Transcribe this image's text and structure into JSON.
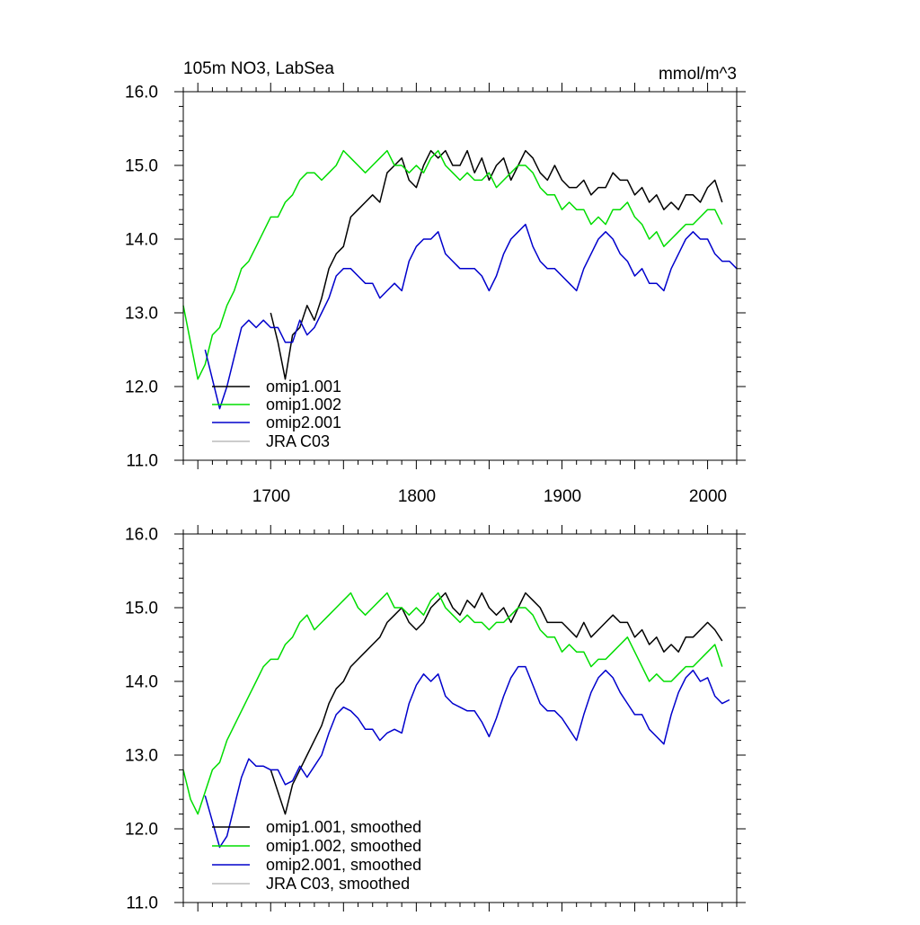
{
  "chart_data": [
    {
      "type": "line",
      "title": "105m NO3, LabSea",
      "units": "mmol/m^3",
      "xlim": [
        1640,
        2020
      ],
      "ylim": [
        11.0,
        16.0
      ],
      "xticks": [
        1700,
        1800,
        1900,
        2000
      ],
      "xtick_labels": [
        "1700",
        "1800",
        "1900",
        "2000"
      ],
      "yticks": [
        11.0,
        12.0,
        13.0,
        14.0,
        15.0,
        16.0
      ],
      "ytick_labels": [
        "11.0",
        "12.0",
        "13.0",
        "14.0",
        "15.0",
        "16.0"
      ],
      "legend_position": "bottom-left",
      "series": [
        {
          "name": "omip1.001",
          "color": "#000000",
          "x": [
            1700,
            1705,
            1710,
            1715,
            1720,
            1725,
            1730,
            1735,
            1740,
            1745,
            1750,
            1755,
            1760,
            1765,
            1770,
            1775,
            1780,
            1785,
            1790,
            1795,
            1800,
            1805,
            1810,
            1815,
            1820,
            1825,
            1830,
            1835,
            1840,
            1845,
            1850,
            1855,
            1860,
            1865,
            1870,
            1875,
            1880,
            1885,
            1890,
            1895,
            1900,
            1905,
            1910,
            1915,
            1920,
            1925,
            1930,
            1935,
            1940,
            1945,
            1950,
            1955,
            1960,
            1965,
            1970,
            1975,
            1980,
            1985,
            1990,
            1995,
            2000,
            2005,
            2010
          ],
          "values": [
            13.0,
            12.6,
            12.1,
            12.7,
            12.8,
            13.1,
            12.9,
            13.2,
            13.6,
            13.8,
            13.9,
            14.3,
            14.4,
            14.5,
            14.6,
            14.5,
            14.9,
            15.0,
            15.1,
            14.8,
            14.7,
            15.0,
            15.2,
            15.1,
            15.2,
            15.0,
            15.0,
            15.2,
            14.9,
            15.1,
            14.8,
            15.0,
            15.1,
            14.8,
            15.0,
            15.2,
            15.1,
            14.9,
            14.8,
            15.0,
            14.8,
            14.7,
            14.7,
            14.8,
            14.6,
            14.7,
            14.7,
            14.9,
            14.8,
            14.8,
            14.6,
            14.7,
            14.5,
            14.6,
            14.4,
            14.5,
            14.4,
            14.6,
            14.6,
            14.5,
            14.7,
            14.8,
            14.5
          ]
        },
        {
          "name": "omip1.002",
          "color": "#00dd00",
          "x": [
            1640,
            1645,
            1650,
            1655,
            1660,
            1665,
            1670,
            1675,
            1680,
            1685,
            1690,
            1695,
            1700,
            1705,
            1710,
            1715,
            1720,
            1725,
            1730,
            1735,
            1740,
            1745,
            1750,
            1755,
            1760,
            1765,
            1770,
            1775,
            1780,
            1785,
            1790,
            1795,
            1800,
            1805,
            1810,
            1815,
            1820,
            1825,
            1830,
            1835,
            1840,
            1845,
            1850,
            1855,
            1860,
            1865,
            1870,
            1875,
            1880,
            1885,
            1890,
            1895,
            1900,
            1905,
            1910,
            1915,
            1920,
            1925,
            1930,
            1935,
            1940,
            1945,
            1950,
            1955,
            1960,
            1965,
            1970,
            1975,
            1980,
            1985,
            1990,
            1995,
            2000,
            2005,
            2010
          ],
          "values": [
            13.1,
            12.6,
            12.1,
            12.3,
            12.7,
            12.8,
            13.1,
            13.3,
            13.6,
            13.7,
            13.9,
            14.1,
            14.3,
            14.3,
            14.5,
            14.6,
            14.8,
            14.9,
            14.9,
            14.8,
            14.9,
            15.0,
            15.2,
            15.1,
            15.0,
            14.9,
            15.0,
            15.1,
            15.2,
            15.0,
            15.0,
            14.9,
            15.0,
            14.9,
            15.1,
            15.2,
            15.0,
            14.9,
            14.8,
            14.9,
            14.8,
            14.8,
            14.9,
            14.7,
            14.8,
            14.9,
            15.0,
            15.0,
            14.9,
            14.7,
            14.6,
            14.6,
            14.4,
            14.5,
            14.4,
            14.4,
            14.2,
            14.3,
            14.2,
            14.4,
            14.4,
            14.5,
            14.3,
            14.2,
            14.0,
            14.1,
            13.9,
            14.0,
            14.1,
            14.2,
            14.2,
            14.3,
            14.4,
            14.4,
            14.2
          ]
        },
        {
          "name": "omip2.001",
          "color": "#0000cc",
          "x": [
            1655,
            1660,
            1665,
            1670,
            1675,
            1680,
            1685,
            1690,
            1695,
            1700,
            1705,
            1710,
            1715,
            1720,
            1725,
            1730,
            1735,
            1740,
            1745,
            1750,
            1755,
            1760,
            1765,
            1770,
            1775,
            1780,
            1785,
            1790,
            1795,
            1800,
            1805,
            1810,
            1815,
            1820,
            1825,
            1830,
            1835,
            1840,
            1845,
            1850,
            1855,
            1860,
            1865,
            1870,
            1875,
            1880,
            1885,
            1890,
            1895,
            1900,
            1905,
            1910,
            1915,
            1920,
            1925,
            1930,
            1935,
            1940,
            1945,
            1950,
            1955,
            1960,
            1965,
            1970,
            1975,
            1980,
            1985,
            1990,
            1995,
            2000,
            2005,
            2010,
            2015,
            2020
          ],
          "values": [
            12.5,
            12.1,
            11.7,
            12.0,
            12.4,
            12.8,
            12.9,
            12.8,
            12.9,
            12.8,
            12.8,
            12.6,
            12.6,
            12.9,
            12.7,
            12.8,
            13.0,
            13.2,
            13.5,
            13.6,
            13.6,
            13.5,
            13.4,
            13.4,
            13.2,
            13.3,
            13.4,
            13.3,
            13.7,
            13.9,
            14.0,
            14.0,
            14.1,
            13.8,
            13.7,
            13.6,
            13.6,
            13.6,
            13.5,
            13.3,
            13.5,
            13.8,
            14.0,
            14.1,
            14.2,
            13.9,
            13.7,
            13.6,
            13.6,
            13.5,
            13.4,
            13.3,
            13.6,
            13.8,
            14.0,
            14.1,
            14.0,
            13.8,
            13.7,
            13.5,
            13.6,
            13.4,
            13.4,
            13.3,
            13.6,
            13.8,
            14.0,
            14.1,
            14.0,
            14.0,
            13.8,
            13.7,
            13.7,
            13.6
          ]
        },
        {
          "name": "JRA C03",
          "color": "#bbbbbb",
          "x": [],
          "values": []
        }
      ]
    },
    {
      "type": "line",
      "xlim": [
        1640,
        2020
      ],
      "ylim": [
        11.0,
        16.0
      ],
      "xticks": [
        1700,
        1800,
        1900,
        2000
      ],
      "yticks": [
        11.0,
        12.0,
        13.0,
        14.0,
        15.0,
        16.0
      ],
      "ytick_labels": [
        "11.0",
        "12.0",
        "13.0",
        "14.0",
        "15.0",
        "16.0"
      ],
      "legend_position": "bottom-left",
      "series": [
        {
          "name": "omip1.001, smoothed",
          "color": "#000000",
          "x": [
            1700,
            1705,
            1710,
            1715,
            1720,
            1725,
            1730,
            1735,
            1740,
            1745,
            1750,
            1755,
            1760,
            1765,
            1770,
            1775,
            1780,
            1785,
            1790,
            1795,
            1800,
            1805,
            1810,
            1815,
            1820,
            1825,
            1830,
            1835,
            1840,
            1845,
            1850,
            1855,
            1860,
            1865,
            1870,
            1875,
            1880,
            1885,
            1890,
            1895,
            1900,
            1905,
            1910,
            1915,
            1920,
            1925,
            1930,
            1935,
            1940,
            1945,
            1950,
            1955,
            1960,
            1965,
            1970,
            1975,
            1980,
            1985,
            1990,
            1995,
            2000,
            2005,
            2010
          ],
          "values": [
            12.8,
            12.5,
            12.2,
            12.6,
            12.8,
            13.0,
            13.2,
            13.4,
            13.7,
            13.9,
            14.0,
            14.2,
            14.3,
            14.4,
            14.5,
            14.6,
            14.8,
            14.9,
            15.0,
            14.8,
            14.7,
            14.8,
            15.0,
            15.1,
            15.2,
            15.0,
            14.9,
            15.1,
            15.0,
            15.2,
            15.0,
            14.9,
            15.0,
            14.8,
            15.0,
            15.2,
            15.1,
            15.0,
            14.8,
            14.8,
            14.8,
            14.7,
            14.6,
            14.8,
            14.6,
            14.7,
            14.8,
            14.9,
            14.8,
            14.8,
            14.6,
            14.7,
            14.5,
            14.6,
            14.4,
            14.5,
            14.4,
            14.6,
            14.6,
            14.7,
            14.8,
            14.7,
            14.55
          ]
        },
        {
          "name": "omip1.002, smoothed",
          "color": "#00dd00",
          "x": [
            1640,
            1645,
            1650,
            1655,
            1660,
            1665,
            1670,
            1675,
            1680,
            1685,
            1690,
            1695,
            1700,
            1705,
            1710,
            1715,
            1720,
            1725,
            1730,
            1735,
            1740,
            1745,
            1750,
            1755,
            1760,
            1765,
            1770,
            1775,
            1780,
            1785,
            1790,
            1795,
            1800,
            1805,
            1810,
            1815,
            1820,
            1825,
            1830,
            1835,
            1840,
            1845,
            1850,
            1855,
            1860,
            1865,
            1870,
            1875,
            1880,
            1885,
            1890,
            1895,
            1900,
            1905,
            1910,
            1915,
            1920,
            1925,
            1930,
            1935,
            1940,
            1945,
            1950,
            1955,
            1960,
            1965,
            1970,
            1975,
            1980,
            1985,
            1990,
            1995,
            2000,
            2005,
            2010
          ],
          "values": [
            12.8,
            12.4,
            12.2,
            12.5,
            12.8,
            12.9,
            13.2,
            13.4,
            13.6,
            13.8,
            14.0,
            14.2,
            14.3,
            14.3,
            14.5,
            14.6,
            14.8,
            14.9,
            14.7,
            14.8,
            14.9,
            15.0,
            15.1,
            15.2,
            15.0,
            14.9,
            15.0,
            15.1,
            15.2,
            15.0,
            15.0,
            14.9,
            15.0,
            14.9,
            15.1,
            15.2,
            15.0,
            14.9,
            14.8,
            14.9,
            14.8,
            14.8,
            14.7,
            14.8,
            14.8,
            14.9,
            15.0,
            15.0,
            14.9,
            14.7,
            14.6,
            14.6,
            14.4,
            14.5,
            14.4,
            14.4,
            14.2,
            14.3,
            14.3,
            14.4,
            14.5,
            14.6,
            14.4,
            14.2,
            14.0,
            14.1,
            14.0,
            14.0,
            14.1,
            14.2,
            14.2,
            14.3,
            14.4,
            14.5,
            14.2
          ]
        },
        {
          "name": "omip2.001, smoothed",
          "color": "#0000cc",
          "x": [
            1655,
            1660,
            1665,
            1670,
            1675,
            1680,
            1685,
            1690,
            1695,
            1700,
            1705,
            1710,
            1715,
            1720,
            1725,
            1730,
            1735,
            1740,
            1745,
            1750,
            1755,
            1760,
            1765,
            1770,
            1775,
            1780,
            1785,
            1790,
            1795,
            1800,
            1805,
            1810,
            1815,
            1820,
            1825,
            1830,
            1835,
            1840,
            1845,
            1850,
            1855,
            1860,
            1865,
            1870,
            1875,
            1880,
            1885,
            1890,
            1895,
            1900,
            1905,
            1910,
            1915,
            1920,
            1925,
            1930,
            1935,
            1940,
            1945,
            1950,
            1955,
            1960,
            1965,
            1970,
            1975,
            1980,
            1985,
            1990,
            1995,
            2000,
            2005,
            2010,
            2015
          ],
          "values": [
            12.45,
            12.1,
            11.75,
            11.9,
            12.3,
            12.7,
            12.95,
            12.85,
            12.85,
            12.8,
            12.8,
            12.6,
            12.65,
            12.85,
            12.7,
            12.85,
            13.0,
            13.3,
            13.55,
            13.65,
            13.6,
            13.5,
            13.35,
            13.35,
            13.2,
            13.3,
            13.35,
            13.3,
            13.7,
            13.95,
            14.1,
            14.0,
            14.1,
            13.8,
            13.7,
            13.65,
            13.6,
            13.6,
            13.45,
            13.25,
            13.5,
            13.8,
            14.05,
            14.2,
            14.2,
            13.95,
            13.7,
            13.6,
            13.6,
            13.5,
            13.35,
            13.2,
            13.55,
            13.85,
            14.05,
            14.15,
            14.05,
            13.85,
            13.7,
            13.55,
            13.55,
            13.35,
            13.25,
            13.15,
            13.55,
            13.85,
            14.05,
            14.15,
            14.0,
            14.05,
            13.8,
            13.7,
            13.75
          ]
        },
        {
          "name": "JRA C03, smoothed",
          "color": "#bbbbbb",
          "x": [],
          "values": []
        }
      ]
    }
  ]
}
